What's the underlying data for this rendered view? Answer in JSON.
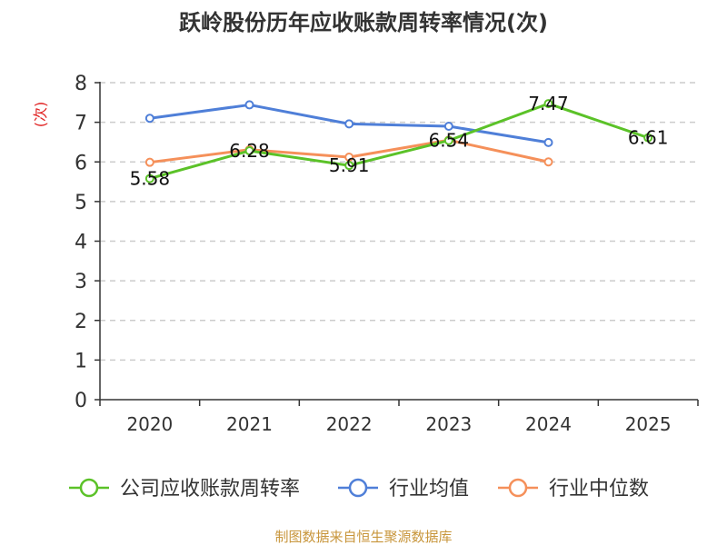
{
  "chart_data": {
    "type": "line",
    "title": "跃岭股份历年应收账款周转率情况(次)",
    "ylabel": "(次)",
    "ylim": [
      0,
      8
    ],
    "yticks": [
      "0",
      "1",
      "2",
      "3",
      "4",
      "5",
      "6",
      "7",
      "8"
    ],
    "categories": [
      "2020",
      "2021",
      "2022",
      "2023",
      "2024",
      "2025"
    ],
    "grid": true,
    "legend_position": "bottom",
    "series": [
      {
        "name": "公司应收账款周转率",
        "color": "#5bc228",
        "values": [
          5.58,
          6.28,
          5.91,
          6.54,
          7.47,
          6.61
        ],
        "labels": [
          "5.58",
          "6.28",
          "5.91",
          "6.54",
          "7.47",
          "6.61"
        ]
      },
      {
        "name": "行业均值",
        "color": "#4f7fd8",
        "values": [
          7.1,
          7.44,
          6.96,
          6.9,
          6.49,
          null
        ]
      },
      {
        "name": "行业中位数",
        "color": "#f5905a",
        "values": [
          5.99,
          6.31,
          6.12,
          6.55,
          6.0,
          null
        ]
      }
    ],
    "source": "制图数据来自恒生聚源数据库",
    "colors": {
      "axis": "#333333",
      "grid": "#cccccc",
      "ylabel": "#e02020",
      "source": "#c8963c"
    }
  }
}
